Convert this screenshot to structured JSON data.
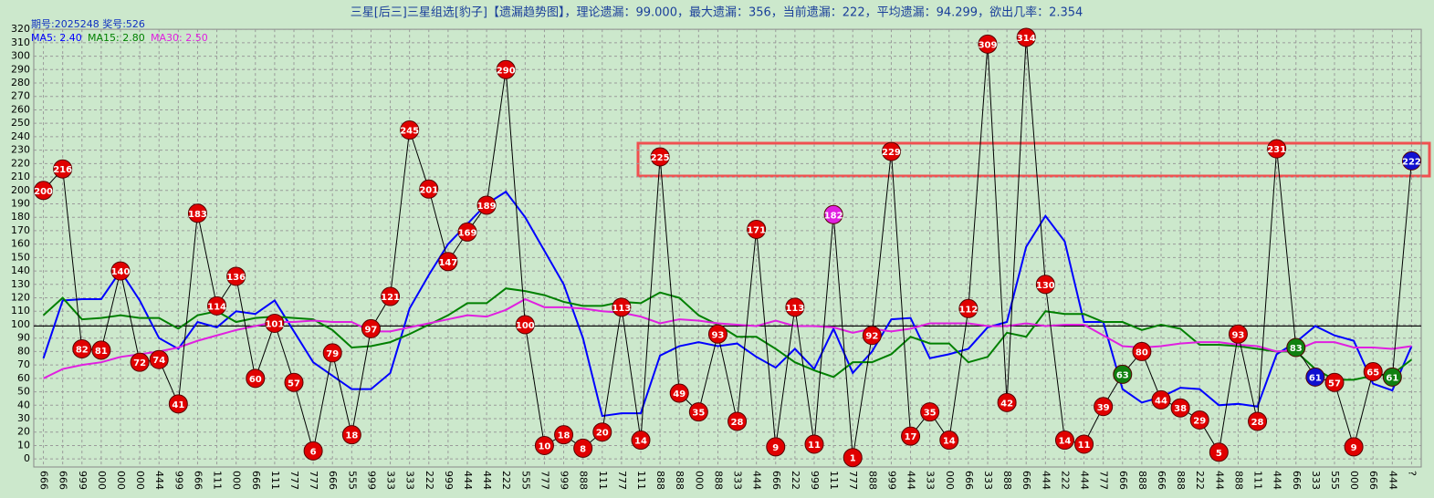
{
  "chart_data": {
    "type": "line",
    "title": "三星[后三]三星组选[豹子]【遗漏趋势图】，理论遗漏：99.000，最大遗漏：356，当前遗漏：222，平均遗漏：94.299，欲出几率：2.354",
    "subtitle": "期号:2025248 奖号:526",
    "categories": [
      "666",
      "666",
      "999",
      "000",
      "000",
      "000",
      "444",
      "999",
      "666",
      "111",
      "000",
      "666",
      "111",
      "777",
      "777",
      "666",
      "555",
      "999",
      "333",
      "333",
      "222",
      "999",
      "444",
      "444",
      "222",
      "555",
      "777",
      "999",
      "888",
      "111",
      "777",
      "111",
      "888",
      "888",
      "000",
      "888",
      "333",
      "444",
      "666",
      "222",
      "999",
      "111",
      "777",
      "888",
      "999",
      "444",
      "333",
      "000",
      "666",
      "333",
      "888",
      "666",
      "444",
      "222",
      "444",
      "777",
      "666",
      "888",
      "666",
      "888",
      "222",
      "444",
      "888",
      "111",
      "444",
      "666",
      "333",
      "555",
      "000",
      "666",
      "444",
      "?"
    ],
    "values": [
      200,
      216,
      82,
      81,
      140,
      72,
      74,
      41,
      183,
      114,
      136,
      60,
      101,
      57,
      6,
      79,
      18,
      97,
      121,
      245,
      201,
      147,
      169,
      189,
      290,
      100,
      10,
      18,
      8,
      20,
      113,
      14,
      225,
      49,
      35,
      93,
      28,
      171,
      9,
      113,
      11,
      182,
      1,
      92,
      229,
      17,
      35,
      14,
      112,
      309,
      42,
      314,
      130,
      14,
      11,
      39,
      63,
      80,
      44,
      38,
      29,
      5,
      93,
      28,
      231,
      83,
      61,
      57,
      9,
      65,
      61,
      222
    ],
    "color": "#000000",
    "marker_colors": [
      "#e00000",
      "#e00000",
      "#e00000",
      "#e00000",
      "#e00000",
      "#e00000",
      "#e00000",
      "#e00000",
      "#e00000",
      "#e00000",
      "#e00000",
      "#e00000",
      "#e00000",
      "#e00000",
      "#e00000",
      "#e00000",
      "#e00000",
      "#e00000",
      "#e00000",
      "#e00000",
      "#e00000",
      "#e00000",
      "#e00000",
      "#e00000",
      "#e00000",
      "#e00000",
      "#e00000",
      "#e00000",
      "#e00000",
      "#e00000",
      "#e00000",
      "#e00000",
      "#e00000",
      "#e00000",
      "#e00000",
      "#e00000",
      "#e00000",
      "#e00000",
      "#e00000",
      "#e00000",
      "#e00000",
      "#e020e0",
      "#e00000",
      "#e00000",
      "#e00000",
      "#e00000",
      "#e00000",
      "#e00000",
      "#e00000",
      "#e00000",
      "#e00000",
      "#e00000",
      "#e00000",
      "#e00000",
      "#e00000",
      "#e00000",
      "#108010",
      "#e00000",
      "#e00000",
      "#e00000",
      "#e00000",
      "#e00000",
      "#e00000",
      "#e00000",
      "#e00000",
      "#108010",
      "#1010d0",
      "#e00000",
      "#e00000",
      "#e00000",
      "#108010",
      "#1010d0"
    ],
    "series": [
      {
        "name": "MA5: 2.40",
        "color": "#0000ff",
        "values": [
          75,
          118,
          119,
          119,
          140,
          118,
          90,
          82,
          102,
          98,
          110,
          108,
          118,
          95,
          72,
          62,
          52,
          52,
          64,
          112,
          137,
          160,
          175,
          190,
          199,
          180,
          155,
          130,
          90,
          32,
          34,
          34,
          77,
          84,
          87,
          84,
          86,
          76,
          68,
          82,
          67,
          97,
          64,
          80,
          104,
          105,
          75,
          78,
          82,
          98,
          102,
          158,
          181,
          162,
          102,
          102,
          52,
          42,
          46,
          53,
          52,
          40,
          41,
          39,
          78,
          87,
          99,
          92,
          88,
          56,
          51,
          84
        ]
      },
      {
        "name": "MA15: 2.80",
        "color": "#008000",
        "values": [
          107,
          120,
          104,
          105,
          107,
          105,
          105,
          97,
          107,
          110,
          102,
          105,
          106,
          105,
          104,
          96,
          83,
          84,
          87,
          93,
          100,
          107,
          116,
          116,
          127,
          125,
          122,
          117,
          114,
          114,
          117,
          116,
          124,
          120,
          107,
          100,
          91,
          91,
          82,
          72,
          66,
          61,
          72,
          72,
          78,
          91,
          86,
          86,
          72,
          76,
          94,
          91,
          110,
          108,
          108,
          102,
          102,
          96,
          100,
          97,
          85,
          85,
          84,
          82,
          80,
          80,
          67,
          59,
          59,
          62,
          63,
          74
        ]
      },
      {
        "name": "MA30: 2.50",
        "color": "#e020e0",
        "values": [
          60,
          67,
          70,
          72,
          76,
          78,
          80,
          83,
          88,
          92,
          96,
          99,
          102,
          102,
          103,
          102,
          102,
          95,
          95,
          98,
          101,
          104,
          107,
          106,
          111,
          119,
          113,
          113,
          112,
          110,
          109,
          106,
          101,
          104,
          103,
          101,
          100,
          99,
          103,
          99,
          99,
          98,
          94,
          97,
          95,
          97,
          101,
          101,
          101,
          99,
          99,
          101,
          99,
          100,
          100,
          92,
          84,
          83,
          84,
          86,
          87,
          87,
          85,
          84,
          80,
          81,
          87,
          87,
          83,
          83,
          82,
          84
        ]
      }
    ],
    "reference_line": 99,
    "ylim": [
      -6,
      320
    ],
    "yticks": [
      0,
      10,
      20,
      30,
      40,
      50,
      60,
      70,
      80,
      90,
      100,
      110,
      120,
      130,
      140,
      150,
      160,
      170,
      180,
      190,
      200,
      210,
      220,
      230,
      240,
      250,
      260,
      270,
      280,
      290,
      300,
      310,
      320
    ],
    "grid": true
  }
}
